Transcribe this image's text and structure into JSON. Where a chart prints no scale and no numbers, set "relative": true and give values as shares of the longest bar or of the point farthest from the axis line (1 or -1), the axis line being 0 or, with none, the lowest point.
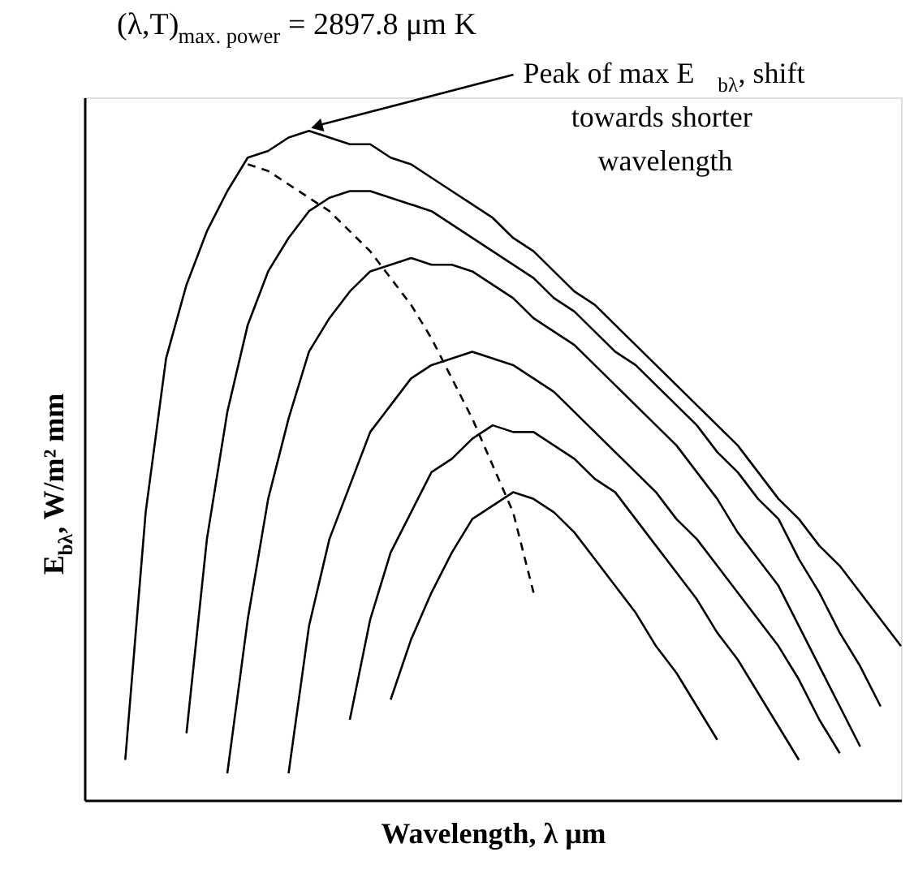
{
  "chart_data": {
    "type": "line",
    "relative": true,
    "title": "(λ,T)$_{max. power}$ = 2897.8 μm K",
    "xlabel": "Wavelength, λ μm",
    "ylabel": "E$_{bλ}$, W/m² mm",
    "annotations": [
      "Peak of max E$_{bλ}$, shift\ntowards shorter\nwavelength"
    ],
    "categories": [
      null,
      null,
      null,
      null,
      null,
      null,
      null,
      null,
      null,
      null,
      null,
      null,
      null,
      null,
      null,
      null,
      null,
      null,
      null,
      null,
      null,
      null,
      null,
      null,
      null,
      null,
      null,
      null,
      null,
      null,
      null,
      null,
      null,
      null,
      null,
      null,
      null,
      null,
      null,
      null,
      null
    ],
    "series": [
      {
        "color": "#000000",
        "values": [
          null,
          null,
          0.06,
          0.43,
          0.66,
          0.77,
          0.85,
          0.91,
          0.96,
          0.97,
          0.99,
          1.0,
          0.99,
          0.98,
          0.98,
          0.96,
          0.95,
          0.93,
          0.91,
          0.89,
          0.87,
          0.84,
          0.82,
          0.79,
          0.76,
          0.74,
          0.71,
          0.68,
          0.65,
          0.62,
          0.59,
          0.56,
          0.53,
          0.49,
          0.45,
          0.42,
          0.38,
          0.35,
          0.31,
          0.27,
          0.23
        ]
      },
      {
        "color": "#000000",
        "values": [
          null,
          null,
          null,
          null,
          null,
          0.1,
          0.39,
          0.58,
          0.71,
          0.79,
          0.84,
          0.88,
          0.9,
          0.91,
          0.91,
          0.9,
          0.89,
          0.88,
          0.86,
          0.84,
          0.82,
          0.8,
          0.78,
          0.75,
          0.73,
          0.7,
          0.67,
          0.65,
          0.62,
          0.59,
          0.56,
          0.52,
          0.49,
          0.45,
          0.42,
          0.36,
          0.31,
          0.25,
          0.2,
          0.14,
          null
        ]
      },
      {
        "color": "#000000",
        "values": [
          null,
          null,
          null,
          null,
          null,
          null,
          null,
          0.04,
          0.27,
          0.45,
          0.57,
          0.67,
          0.72,
          0.76,
          0.79,
          0.8,
          0.81,
          0.8,
          0.8,
          0.79,
          0.77,
          0.75,
          0.72,
          0.7,
          0.68,
          0.65,
          0.62,
          0.59,
          0.56,
          0.53,
          0.49,
          0.45,
          0.4,
          0.36,
          0.32,
          0.26,
          0.2,
          0.14,
          0.08,
          null,
          null
        ]
      },
      {
        "color": "#000000",
        "values": [
          null,
          null,
          null,
          null,
          null,
          null,
          null,
          null,
          null,
          null,
          0.04,
          0.26,
          0.39,
          0.47,
          0.55,
          0.59,
          0.63,
          0.65,
          0.66,
          0.67,
          0.66,
          0.65,
          0.63,
          0.61,
          0.58,
          0.55,
          0.52,
          0.49,
          0.46,
          0.42,
          0.39,
          0.35,
          0.31,
          0.27,
          0.23,
          0.18,
          0.12,
          0.07,
          null,
          null,
          null
        ]
      },
      {
        "color": "#000000",
        "values": [
          null,
          null,
          null,
          null,
          null,
          null,
          null,
          null,
          null,
          null,
          null,
          null,
          null,
          0.12,
          0.27,
          0.37,
          0.43,
          0.49,
          0.51,
          0.54,
          0.56,
          0.55,
          0.55,
          0.53,
          0.51,
          0.48,
          0.46,
          0.42,
          0.38,
          0.34,
          0.3,
          0.25,
          0.21,
          0.16,
          0.11,
          0.06,
          null,
          null,
          null,
          null,
          null
        ]
      },
      {
        "color": "#000000",
        "values": [
          null,
          null,
          null,
          null,
          null,
          null,
          null,
          null,
          null,
          null,
          null,
          null,
          null,
          null,
          null,
          0.15,
          0.24,
          0.31,
          0.37,
          0.42,
          0.44,
          0.46,
          0.45,
          0.43,
          0.4,
          0.36,
          0.32,
          0.28,
          0.23,
          0.19,
          0.14,
          0.09,
          null,
          null,
          null,
          null,
          null,
          null,
          null,
          null,
          null
        ]
      },
      {
        "color": "#000000",
        "line_style": "dashed",
        "values": [
          null,
          null,
          null,
          null,
          null,
          null,
          null,
          null,
          0.95,
          0.94,
          0.92,
          0.9,
          0.88,
          0.85,
          0.82,
          0.78,
          0.74,
          0.69,
          0.63,
          0.57,
          0.5,
          0.43,
          0.31,
          null,
          null,
          null,
          null,
          null,
          null,
          null,
          null,
          null,
          null,
          null,
          null,
          null,
          null,
          null,
          null,
          null,
          null
        ]
      }
    ]
  }
}
